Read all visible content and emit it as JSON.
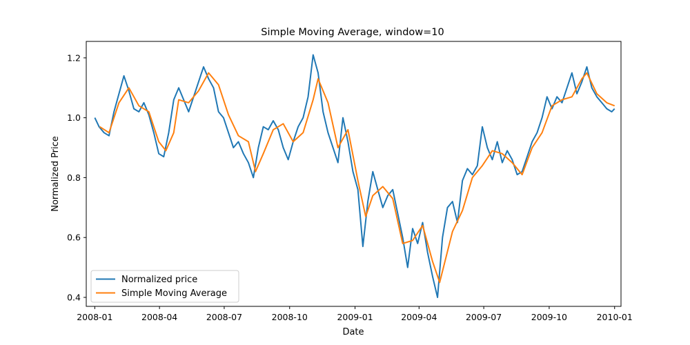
{
  "chart_data": {
    "type": "line",
    "title": "Simple Moving Average, window=10",
    "xlabel": "Date",
    "ylabel": "Normalized Price",
    "xlim": [
      "2007-12-20",
      "2010-01-10"
    ],
    "ylim": [
      0.37,
      1.255
    ],
    "x_ticks": [
      "2008-01",
      "2008-04",
      "2008-07",
      "2008-10",
      "2009-01",
      "2009-04",
      "2009-07",
      "2009-10",
      "2010-01"
    ],
    "y_ticks": [
      "0.4",
      "0.6",
      "0.8",
      "1.0",
      "1.2"
    ],
    "grid": false,
    "legend_position": "lower-left",
    "series": [
      {
        "name": "Normalized price",
        "color": "#1f77b4",
        "points": [
          [
            "2008-01-01",
            1.0
          ],
          [
            "2008-01-07",
            0.97
          ],
          [
            "2008-01-14",
            0.95
          ],
          [
            "2008-01-21",
            0.94
          ],
          [
            "2008-01-28",
            1.02
          ],
          [
            "2008-02-04",
            1.08
          ],
          [
            "2008-02-11",
            1.14
          ],
          [
            "2008-02-18",
            1.09
          ],
          [
            "2008-02-25",
            1.03
          ],
          [
            "2008-03-03",
            1.02
          ],
          [
            "2008-03-10",
            1.05
          ],
          [
            "2008-03-17",
            1.01
          ],
          [
            "2008-03-24",
            0.95
          ],
          [
            "2008-03-31",
            0.88
          ],
          [
            "2008-04-07",
            0.87
          ],
          [
            "2008-04-14",
            0.95
          ],
          [
            "2008-04-21",
            1.06
          ],
          [
            "2008-04-28",
            1.1
          ],
          [
            "2008-05-05",
            1.06
          ],
          [
            "2008-05-12",
            1.02
          ],
          [
            "2008-05-19",
            1.07
          ],
          [
            "2008-05-26",
            1.12
          ],
          [
            "2008-06-02",
            1.17
          ],
          [
            "2008-06-09",
            1.13
          ],
          [
            "2008-06-16",
            1.1
          ],
          [
            "2008-06-23",
            1.02
          ],
          [
            "2008-06-30",
            1.0
          ],
          [
            "2008-07-07",
            0.95
          ],
          [
            "2008-07-14",
            0.9
          ],
          [
            "2008-07-21",
            0.92
          ],
          [
            "2008-07-28",
            0.88
          ],
          [
            "2008-08-04",
            0.85
          ],
          [
            "2008-08-11",
            0.8
          ],
          [
            "2008-08-18",
            0.9
          ],
          [
            "2008-08-25",
            0.97
          ],
          [
            "2008-09-01",
            0.96
          ],
          [
            "2008-09-08",
            0.99
          ],
          [
            "2008-09-15",
            0.96
          ],
          [
            "2008-09-22",
            0.9
          ],
          [
            "2008-09-29",
            0.86
          ],
          [
            "2008-10-06",
            0.92
          ],
          [
            "2008-10-13",
            0.97
          ],
          [
            "2008-10-20",
            1.0
          ],
          [
            "2008-10-27",
            1.07
          ],
          [
            "2008-11-03",
            1.21
          ],
          [
            "2008-11-10",
            1.15
          ],
          [
            "2008-11-17",
            1.02
          ],
          [
            "2008-11-24",
            0.95
          ],
          [
            "2008-12-01",
            0.9
          ],
          [
            "2008-12-08",
            0.85
          ],
          [
            "2008-12-15",
            1.0
          ],
          [
            "2008-12-22",
            0.92
          ],
          [
            "2008-12-29",
            0.82
          ],
          [
            "2009-01-05",
            0.76
          ],
          [
            "2009-01-12",
            0.57
          ],
          [
            "2009-01-19",
            0.72
          ],
          [
            "2009-01-26",
            0.82
          ],
          [
            "2009-02-02",
            0.76
          ],
          [
            "2009-02-09",
            0.7
          ],
          [
            "2009-02-16",
            0.74
          ],
          [
            "2009-02-23",
            0.76
          ],
          [
            "2009-03-02",
            0.68
          ],
          [
            "2009-03-09",
            0.6
          ],
          [
            "2009-03-16",
            0.5
          ],
          [
            "2009-03-23",
            0.63
          ],
          [
            "2009-03-30",
            0.58
          ],
          [
            "2009-04-06",
            0.65
          ],
          [
            "2009-04-13",
            0.55
          ],
          [
            "2009-04-20",
            0.47
          ],
          [
            "2009-04-27",
            0.4
          ],
          [
            "2009-05-04",
            0.6
          ],
          [
            "2009-05-11",
            0.7
          ],
          [
            "2009-05-18",
            0.72
          ],
          [
            "2009-05-25",
            0.65
          ],
          [
            "2009-06-01",
            0.79
          ],
          [
            "2009-06-08",
            0.83
          ],
          [
            "2009-06-15",
            0.81
          ],
          [
            "2009-06-22",
            0.84
          ],
          [
            "2009-06-29",
            0.97
          ],
          [
            "2009-07-06",
            0.9
          ],
          [
            "2009-07-13",
            0.86
          ],
          [
            "2009-07-20",
            0.92
          ],
          [
            "2009-07-27",
            0.85
          ],
          [
            "2009-08-03",
            0.89
          ],
          [
            "2009-08-10",
            0.86
          ],
          [
            "2009-08-17",
            0.81
          ],
          [
            "2009-08-24",
            0.82
          ],
          [
            "2009-08-31",
            0.87
          ],
          [
            "2009-09-07",
            0.92
          ],
          [
            "2009-09-14",
            0.95
          ],
          [
            "2009-09-21",
            1.0
          ],
          [
            "2009-09-28",
            1.07
          ],
          [
            "2009-10-05",
            1.03
          ],
          [
            "2009-10-12",
            1.07
          ],
          [
            "2009-10-19",
            1.05
          ],
          [
            "2009-10-26",
            1.1
          ],
          [
            "2009-11-02",
            1.15
          ],
          [
            "2009-11-09",
            1.08
          ],
          [
            "2009-11-16",
            1.12
          ],
          [
            "2009-11-23",
            1.17
          ],
          [
            "2009-11-30",
            1.1
          ],
          [
            "2009-12-07",
            1.07
          ],
          [
            "2009-12-14",
            1.05
          ],
          [
            "2009-12-21",
            1.03
          ],
          [
            "2009-12-28",
            1.02
          ],
          [
            "2010-01-01",
            1.03
          ]
        ]
      },
      {
        "name": "Simple Moving Average",
        "color": "#ff7f0e",
        "points": [
          [
            "2008-01-08",
            0.97
          ],
          [
            "2008-01-21",
            0.95
          ],
          [
            "2008-02-04",
            1.05
          ],
          [
            "2008-02-18",
            1.1
          ],
          [
            "2008-03-03",
            1.04
          ],
          [
            "2008-03-17",
            1.02
          ],
          [
            "2008-03-31",
            0.92
          ],
          [
            "2008-04-10",
            0.89
          ],
          [
            "2008-04-21",
            0.95
          ],
          [
            "2008-04-28",
            1.06
          ],
          [
            "2008-05-12",
            1.05
          ],
          [
            "2008-05-26",
            1.09
          ],
          [
            "2008-06-09",
            1.15
          ],
          [
            "2008-06-23",
            1.11
          ],
          [
            "2008-07-07",
            1.01
          ],
          [
            "2008-07-21",
            0.94
          ],
          [
            "2008-08-04",
            0.92
          ],
          [
            "2008-08-14",
            0.82
          ],
          [
            "2008-08-25",
            0.88
          ],
          [
            "2008-09-08",
            0.96
          ],
          [
            "2008-09-22",
            0.98
          ],
          [
            "2008-10-06",
            0.92
          ],
          [
            "2008-10-20",
            0.95
          ],
          [
            "2008-11-03",
            1.06
          ],
          [
            "2008-11-10",
            1.13
          ],
          [
            "2008-11-24",
            1.05
          ],
          [
            "2008-12-08",
            0.9
          ],
          [
            "2008-12-22",
            0.96
          ],
          [
            "2009-01-05",
            0.79
          ],
          [
            "2009-01-16",
            0.67
          ],
          [
            "2009-01-26",
            0.74
          ],
          [
            "2009-02-09",
            0.77
          ],
          [
            "2009-02-23",
            0.73
          ],
          [
            "2009-03-09",
            0.58
          ],
          [
            "2009-03-23",
            0.59
          ],
          [
            "2009-04-06",
            0.64
          ],
          [
            "2009-04-20",
            0.52
          ],
          [
            "2009-04-30",
            0.45
          ],
          [
            "2009-05-18",
            0.62
          ],
          [
            "2009-06-01",
            0.69
          ],
          [
            "2009-06-15",
            0.8
          ],
          [
            "2009-06-29",
            0.84
          ],
          [
            "2009-07-13",
            0.89
          ],
          [
            "2009-07-27",
            0.88
          ],
          [
            "2009-08-10",
            0.85
          ],
          [
            "2009-08-24",
            0.81
          ],
          [
            "2009-09-07",
            0.9
          ],
          [
            "2009-09-21",
            0.95
          ],
          [
            "2009-10-05",
            1.04
          ],
          [
            "2009-10-19",
            1.06
          ],
          [
            "2009-11-02",
            1.07
          ],
          [
            "2009-11-16",
            1.13
          ],
          [
            "2009-11-23",
            1.15
          ],
          [
            "2009-12-07",
            1.08
          ],
          [
            "2009-12-21",
            1.05
          ],
          [
            "2010-01-01",
            1.04
          ]
        ]
      }
    ]
  }
}
